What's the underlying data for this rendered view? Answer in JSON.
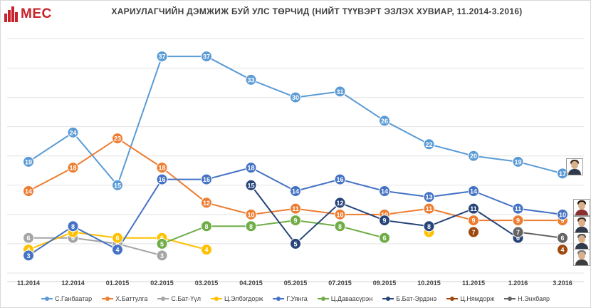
{
  "logo": {
    "text": "MEC",
    "color": "#c8232c"
  },
  "chart_data": {
    "type": "line",
    "title": "ХАРИУЛАГЧИЙН ДЭМЖИЖ БУЙ УЛС ТӨРЧИД (НИЙТ ТҮҮВЭРТ ЭЗЛЭХ ХУВИАР, 11.2014-3.2016)",
    "categories": [
      "11.2014",
      "12.2014",
      "01.2015",
      "02.2015",
      "03.2015",
      "04.2015",
      "05.2015",
      "07.2015",
      "09.2015",
      "10.2015",
      "11.2015",
      "1.2016",
      "3.2016"
    ],
    "ylim": [
      0,
      42
    ],
    "grid": true,
    "legend_position": "bottom",
    "series": [
      {
        "name": "С.Ганбаатар",
        "color": "#5b9bd5",
        "values": [
          19,
          24,
          15,
          37,
          37,
          33,
          30,
          31,
          26,
          22,
          20,
          19,
          17
        ]
      },
      {
        "name": "Х.Баттулга",
        "color": "#ed7d31",
        "values": [
          14,
          18,
          23,
          18,
          12,
          10,
          11,
          10,
          10,
          11,
          9,
          9,
          9
        ]
      },
      {
        "name": "С.Бат-Үүл",
        "color": "#a5a5a5",
        "values": [
          6,
          6,
          5,
          3,
          null,
          null,
          null,
          null,
          null,
          null,
          null,
          null,
          null
        ]
      },
      {
        "name": "Ц.Элбэгдорж",
        "color": "#ffc000",
        "values": [
          4,
          7,
          6,
          6,
          4,
          null,
          null,
          null,
          null,
          7,
          null,
          null,
          null
        ]
      },
      {
        "name": "Г.Уянга",
        "color": "#4472c4",
        "values": [
          3,
          8,
          4,
          16,
          16,
          18,
          14,
          16,
          14,
          13,
          14,
          11,
          10
        ]
      },
      {
        "name": "Ц.Даваасүрэн",
        "color": "#70ad47",
        "values": [
          null,
          null,
          null,
          5,
          8,
          8,
          9,
          8,
          6,
          null,
          null,
          null,
          null
        ]
      },
      {
        "name": "Б.Бат-Эрдэнэ",
        "color": "#264478",
        "values": [
          null,
          null,
          null,
          null,
          null,
          15,
          5,
          12,
          9,
          8,
          11,
          6,
          null
        ]
      },
      {
        "name": "Ц.Нямдорж",
        "color": "#9e480e",
        "values": [
          null,
          null,
          null,
          null,
          null,
          null,
          null,
          null,
          null,
          null,
          7,
          null,
          4
        ]
      },
      {
        "name": "Н.Энхбаяр",
        "color": "#636363",
        "values": [
          null,
          null,
          null,
          null,
          null,
          null,
          null,
          null,
          null,
          null,
          null,
          7,
          6
        ]
      }
    ]
  }
}
